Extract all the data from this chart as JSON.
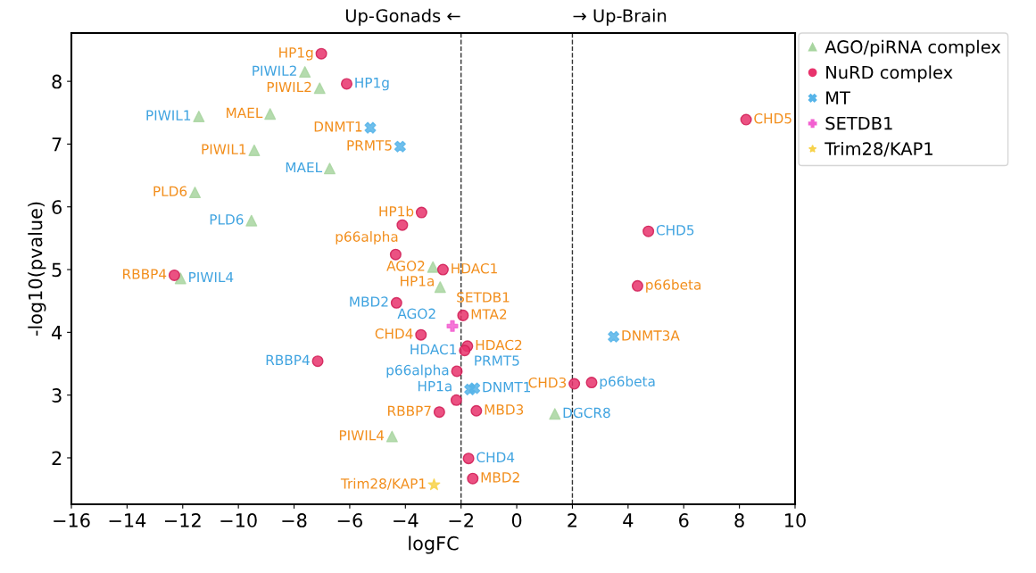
{
  "chart_data": {
    "type": "scatter",
    "xlabel": "logFC",
    "ylabel": "-log10(pvalue)",
    "xlim": [
      -16,
      10
    ],
    "ylim": [
      1.26,
      8.77
    ],
    "xticks": [
      -16,
      -14,
      -12,
      -10,
      -8,
      -6,
      -4,
      -2,
      0,
      2,
      4,
      6,
      8,
      10
    ],
    "yticks": [
      2,
      3,
      4,
      5,
      6,
      7,
      8
    ],
    "legend": "top right",
    "ref_lines": [
      {
        "axis": "x",
        "value": -2,
        "label": "Up-Gonads ←",
        "color": "#333333",
        "line_style": "dashed"
      },
      {
        "axis": "x",
        "value": 2,
        "label": "→ Up-Brain",
        "color": "#333333",
        "line_style": "dashed"
      }
    ],
    "annotations": [
      {
        "text": "PIWIL2",
        "x": -7.61,
        "y": 8.15
      },
      {
        "text": "PIWIL1",
        "x": -11.42,
        "y": 7.44
      },
      {
        "text": "MAEL",
        "x": -6.72,
        "y": 6.61
      },
      {
        "text": "PLD6",
        "x": -9.53,
        "y": 5.78
      },
      {
        "text": "PIWIL4",
        "x": -12.08,
        "y": 4.86
      },
      {
        "text": "AGO2",
        "x": -2.75,
        "y": 4.72
      },
      {
        "text": "DGCR8",
        "x": 1.37,
        "y": 2.7
      },
      {
        "text": "HP1g",
        "x": -6.11,
        "y": 7.96
      },
      {
        "text": "MBD2",
        "x": -4.32,
        "y": 4.47
      },
      {
        "text": "HDAC1",
        "x": -1.87,
        "y": 3.71
      },
      {
        "text": "RBBP4",
        "x": -7.15,
        "y": 3.54
      },
      {
        "text": "p66alpha",
        "x": -2.15,
        "y": 3.38
      },
      {
        "text": "HP1a",
        "x": -2.17,
        "y": 2.92
      },
      {
        "text": "CHD4",
        "x": -1.73,
        "y": 1.99
      },
      {
        "text": "p66beta",
        "x": 2.69,
        "y": 3.2
      },
      {
        "text": "CHD5",
        "x": 4.73,
        "y": 5.61
      },
      {
        "text": "PRMT5",
        "x": -1.68,
        "y": 3.09
      },
      {
        "text": "DNMT1",
        "x": -1.52,
        "y": 3.11
      }
    ],
    "series": [
      {
        "name": "AGO/piRNA complex",
        "color": "#a8d5a0",
        "marker": "triangle",
        "x": [
          -7.61,
          -7.08,
          -11.42,
          -8.86,
          -9.43,
          -6.72,
          -11.56,
          -9.53,
          -12.08,
          -3.01,
          -2.75,
          -4.48,
          1.37
        ],
        "values": [
          8.15,
          7.89,
          7.44,
          7.48,
          6.9,
          6.61,
          6.23,
          5.78,
          4.86,
          5.04,
          4.72,
          2.34,
          2.7
        ],
        "value_labels": [
          null,
          "PIWIL2",
          null,
          "MAEL",
          "PIWIL1",
          null,
          "PLD6",
          null,
          null,
          "AGO2",
          null,
          "PIWIL4",
          null
        ]
      },
      {
        "name": "NuRD complex",
        "color": "#e8336c",
        "marker": "circle",
        "x": [
          -7.02,
          -6.11,
          -3.42,
          -4.11,
          -4.35,
          -2.65,
          -12.3,
          -4.32,
          -1.93,
          -3.44,
          -1.77,
          -1.87,
          -7.15,
          -2.15,
          -2.17,
          -2.78,
          -1.45,
          -1.73,
          -1.58,
          2.07,
          2.69,
          8.24,
          4.73,
          4.34
        ],
        "values": [
          8.44,
          7.96,
          5.91,
          5.71,
          5.24,
          5.0,
          4.91,
          4.47,
          4.27,
          3.96,
          3.78,
          3.71,
          3.54,
          3.38,
          2.92,
          2.73,
          2.75,
          1.99,
          1.67,
          3.18,
          3.2,
          7.39,
          5.61,
          4.74
        ],
        "value_labels": [
          "HP1g",
          null,
          "HP1b",
          "p66alpha",
          "HP1a",
          "HDAC1",
          "RBBP4",
          null,
          "MTA2",
          "CHD4",
          "HDAC2",
          null,
          null,
          null,
          null,
          "RBBP7",
          "MBD3",
          null,
          "MBD2",
          "CHD3",
          null,
          "CHD5",
          null,
          "p66beta"
        ]
      },
      {
        "name": "MT",
        "color": "#56b4e9",
        "marker": "cross",
        "x": [
          -5.26,
          -4.19,
          3.48,
          -1.68,
          -1.52
        ],
        "values": [
          7.26,
          6.96,
          3.93,
          3.09,
          3.11
        ],
        "value_labels": [
          "DNMT1",
          "PRMT5",
          "DNMT3A",
          null,
          null
        ]
      },
      {
        "name": "SETDB1",
        "color": "#f25fd0",
        "marker": "plus",
        "x": [
          -2.31
        ],
        "values": [
          4.1
        ],
        "value_labels": [
          "SETDB1"
        ]
      },
      {
        "name": "Trim28/KAP1",
        "color": "#f7d24a",
        "marker": "star",
        "x": [
          -2.97
        ],
        "values": [
          1.57
        ],
        "value_labels": [
          "Trim28/KAP1"
        ]
      }
    ]
  }
}
